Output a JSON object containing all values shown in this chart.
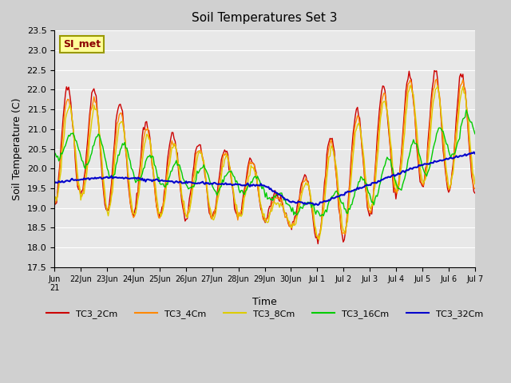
{
  "title": "Soil Temperatures Set 3",
  "xlabel": "Time",
  "ylabel": "Soil Temperature (C)",
  "fig_bg_color": "#d0d0d0",
  "plot_bg_color": "#e8e8e8",
  "ylim": [
    17.5,
    23.5
  ],
  "yticks": [
    17.5,
    18.0,
    18.5,
    19.0,
    19.5,
    20.0,
    20.5,
    21.0,
    21.5,
    22.0,
    22.5,
    23.0,
    23.5
  ],
  "xtick_labels": [
    "Jun 21",
    "Jun 22",
    "Jun 23",
    "Jun 24",
    "Jun 25",
    "Jun 26",
    "Jun 27",
    "Jun 28",
    "Jun 29",
    "Jun 30",
    "Jul 1",
    "Jul 2",
    "Jul 3",
    "Jul 4",
    "Jul 5",
    "Jul 6",
    "Jul 7"
  ],
  "series_colors": {
    "TC3_2Cm": "#cc0000",
    "TC3_4Cm": "#ff8800",
    "TC3_8Cm": "#ddcc00",
    "TC3_16Cm": "#00cc00",
    "TC3_32Cm": "#0000cc"
  },
  "annotation_text": "SI_met",
  "annotation_fg": "#8b0000",
  "annotation_bg": "#ffff99",
  "annotation_edge": "#999900",
  "series_names": [
    "TC3_2Cm",
    "TC3_4Cm",
    "TC3_8Cm",
    "TC3_16Cm",
    "TC3_32Cm"
  ]
}
